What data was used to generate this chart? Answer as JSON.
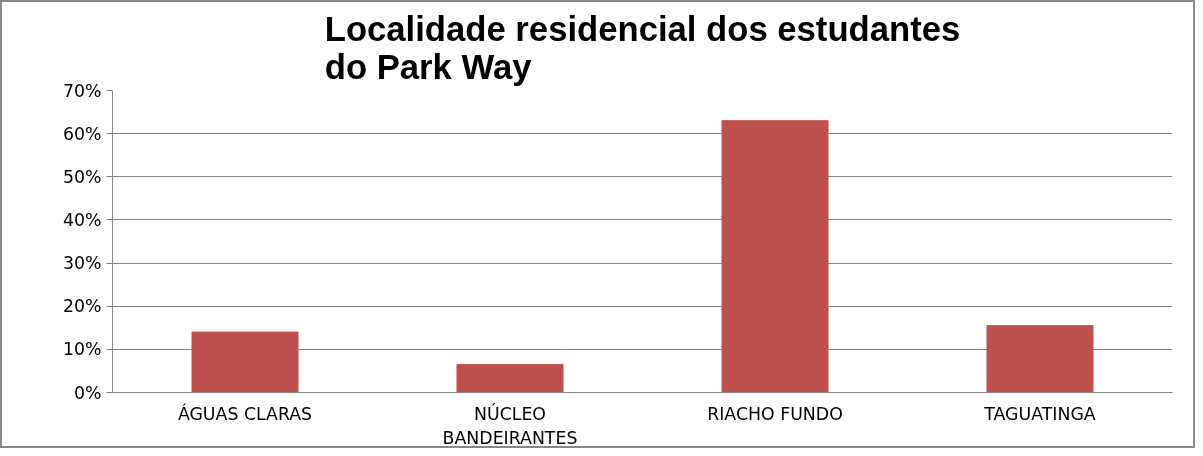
{
  "chart_data": {
    "type": "bar",
    "title": "Localidade residencial dos estudantes do Park Way",
    "categories": [
      "ÁGUAS CLARAS",
      "NÚCLEO BANDEIRANTES",
      "RIACHO FUNDO",
      "TAGUATINGA"
    ],
    "values": [
      14,
      6.5,
      63,
      15.5
    ],
    "color": "#c0504d",
    "ylim": [
      0,
      70
    ],
    "yticks": [
      {
        "value": 0,
        "label": "0%"
      },
      {
        "value": 10,
        "label": "10%"
      },
      {
        "value": 20,
        "label": "20%"
      },
      {
        "value": 30,
        "label": "30%"
      },
      {
        "value": 40,
        "label": "40%"
      },
      {
        "value": 50,
        "label": "50%"
      },
      {
        "value": 60,
        "label": "60%"
      },
      {
        "value": 70,
        "label": "70%"
      }
    ],
    "grid": "y"
  }
}
